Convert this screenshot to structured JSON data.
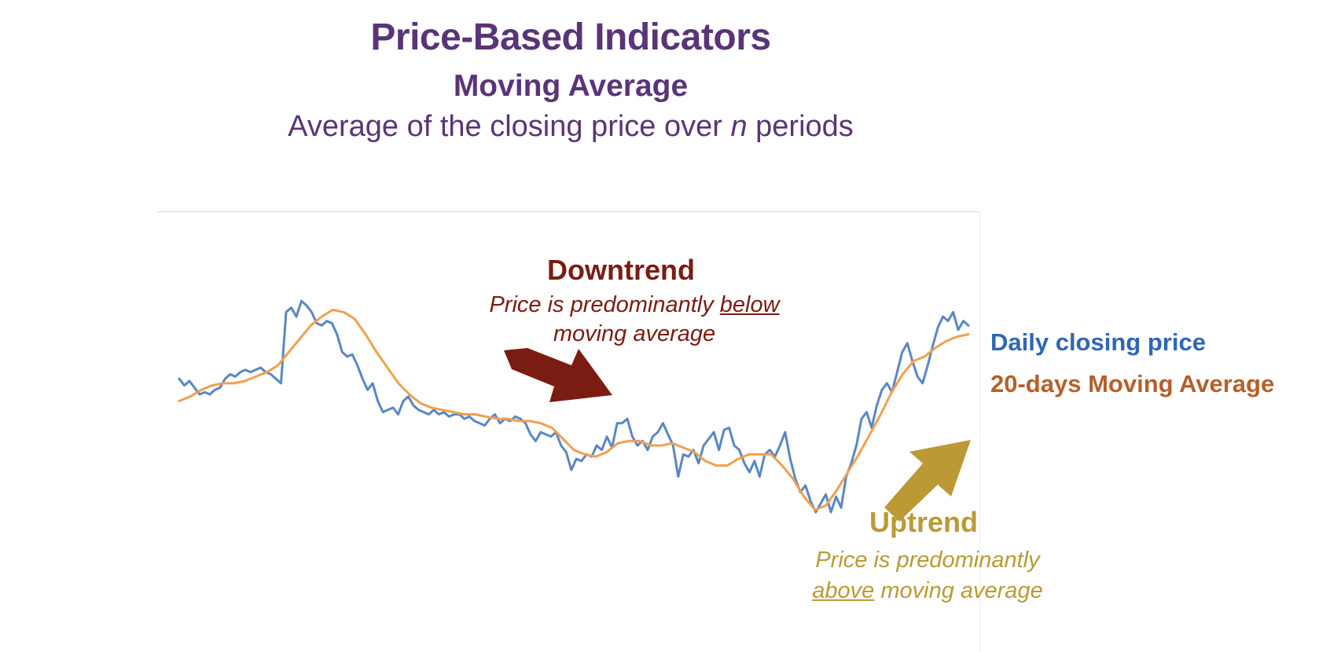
{
  "header": {
    "title": "Price-Based Indicators",
    "subtitle": "Moving Average",
    "description_pre": "Average of the closing price over ",
    "description_var": "n",
    "description_post": " periods"
  },
  "colors": {
    "title": "#5a3479",
    "price_line": "#5b86c4",
    "ma_line": "#f0a050",
    "downtrend": "#7b1c12",
    "uptrend": "#bb9a35"
  },
  "annotations": {
    "downtrend": {
      "title": "Downtrend",
      "line1_pre": "Price is predominantly ",
      "line1_emph": "below",
      "line2": "moving average"
    },
    "uptrend": {
      "title": "Uptrend",
      "line1": "Price is predominantly",
      "line2_emph": "above",
      "line2_post": " moving average"
    }
  },
  "chart_data": {
    "type": "line",
    "title": "",
    "xlabel": "",
    "ylabel": "",
    "grid": false,
    "legend_placement": "right",
    "ylim": [
      0,
      100
    ],
    "series": [
      {
        "name": "Daily closing price",
        "color": "#5b86c4",
        "values": [
          60,
          57,
          59,
          56,
          53,
          54,
          53,
          55,
          56,
          60,
          62,
          61,
          63,
          64,
          63,
          64,
          65,
          63,
          62,
          60,
          58,
          90,
          92,
          88,
          95,
          93,
          90,
          85,
          84,
          86,
          85,
          80,
          72,
          70,
          71,
          66,
          60,
          55,
          58,
          50,
          45,
          46,
          47,
          44,
          50,
          52,
          48,
          46,
          45,
          44,
          46,
          44,
          45,
          43,
          44,
          44,
          42,
          43,
          41,
          40,
          39,
          42,
          44,
          40,
          42,
          41,
          43,
          42,
          40,
          35,
          32,
          36,
          35,
          34,
          36,
          30,
          27,
          19,
          24,
          23,
          26,
          25,
          30,
          28,
          34,
          29,
          40,
          40,
          42,
          34,
          30,
          32,
          28,
          34,
          36,
          40,
          35,
          30,
          16,
          26,
          25,
          28,
          22,
          30,
          33,
          36,
          28,
          37,
          38,
          30,
          28,
          22,
          18,
          23,
          16,
          26,
          28,
          25,
          30,
          36,
          24,
          15,
          9,
          12,
          5,
          0,
          4,
          8,
          0,
          7,
          2,
          16,
          22,
          30,
          42,
          45,
          38,
          48,
          55,
          58,
          54,
          63,
          72,
          76,
          68,
          61,
          58,
          66,
          75,
          83,
          88,
          86,
          90,
          82,
          86,
          84
        ],
        "values_note_x": "daily points, evenly spaced"
      },
      {
        "name": "20-days Moving Average",
        "color": "#f0a050",
        "values": [
          50,
          52,
          55,
          57,
          58,
          58,
          59,
          61,
          63,
          66,
          72,
          78,
          84,
          88,
          91,
          90,
          87,
          80,
          72,
          65,
          58,
          53,
          49,
          47,
          46,
          45,
          44,
          44,
          43,
          42,
          42,
          41,
          41,
          40,
          38,
          33,
          28,
          26,
          25,
          27,
          31,
          32,
          32,
          30,
          30,
          31,
          29,
          27,
          23,
          21,
          21,
          24,
          26,
          26,
          26,
          21,
          15,
          7,
          1,
          3,
          10,
          18,
          26,
          35,
          44,
          54,
          62,
          68,
          70,
          74,
          77,
          79,
          80
        ]
      }
    ]
  },
  "legend": {
    "price_label": "Daily closing price",
    "ma_label": "20-days Moving Average"
  }
}
